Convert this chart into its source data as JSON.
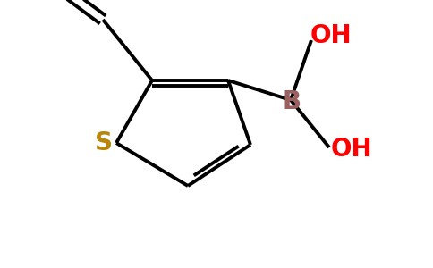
{
  "bg_color": "#ffffff",
  "atom_colors": {
    "O": "#ff0000",
    "S": "#b8860b",
    "B": "#9b6060",
    "OH": "#ff0000",
    "C": "#000000"
  },
  "bond_color": "#000000",
  "bond_lw": 2.8,
  "figsize": [
    4.84,
    3.0
  ],
  "dpi": 100,
  "xlim": [
    0.0,
    4.84
  ],
  "ylim": [
    0.0,
    3.0
  ]
}
